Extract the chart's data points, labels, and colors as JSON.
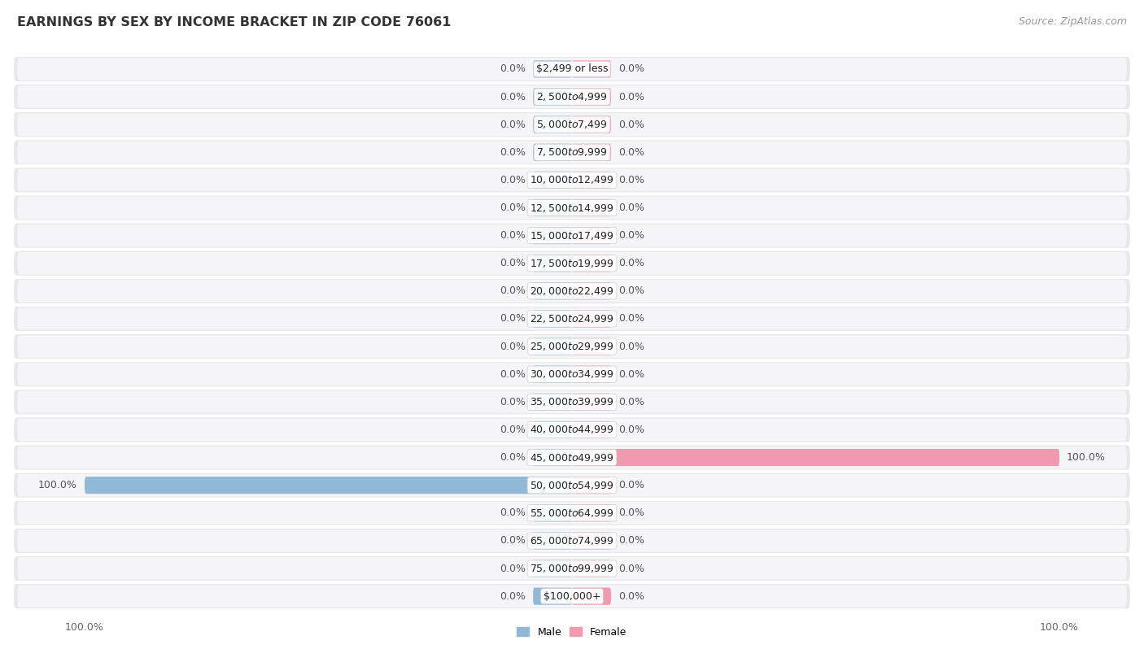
{
  "title": "EARNINGS BY SEX BY INCOME BRACKET IN ZIP CODE 76061",
  "source": "Source: ZipAtlas.com",
  "categories": [
    "$2,499 or less",
    "$2,500 to $4,999",
    "$5,000 to $7,499",
    "$7,500 to $9,999",
    "$10,000 to $12,499",
    "$12,500 to $14,999",
    "$15,000 to $17,499",
    "$17,500 to $19,999",
    "$20,000 to $22,499",
    "$22,500 to $24,999",
    "$25,000 to $29,999",
    "$30,000 to $34,999",
    "$35,000 to $39,999",
    "$40,000 to $44,999",
    "$45,000 to $49,999",
    "$50,000 to $54,999",
    "$55,000 to $64,999",
    "$65,000 to $74,999",
    "$75,000 to $99,999",
    "$100,000+"
  ],
  "male_values": [
    0.0,
    0.0,
    0.0,
    0.0,
    0.0,
    0.0,
    0.0,
    0.0,
    0.0,
    0.0,
    0.0,
    0.0,
    0.0,
    0.0,
    0.0,
    100.0,
    0.0,
    0.0,
    0.0,
    0.0
  ],
  "female_values": [
    0.0,
    0.0,
    0.0,
    0.0,
    0.0,
    0.0,
    0.0,
    0.0,
    0.0,
    0.0,
    0.0,
    0.0,
    0.0,
    0.0,
    100.0,
    0.0,
    0.0,
    0.0,
    0.0,
    0.0
  ],
  "male_color": "#92b8d8",
  "female_color": "#f09ab0",
  "row_bg_color": "#e8e8ec",
  "row_inner_color": "#f5f5f8",
  "title_fontsize": 11.5,
  "source_fontsize": 9,
  "label_fontsize": 9,
  "value_fontsize": 9,
  "tick_fontsize": 9,
  "xlim": 100
}
